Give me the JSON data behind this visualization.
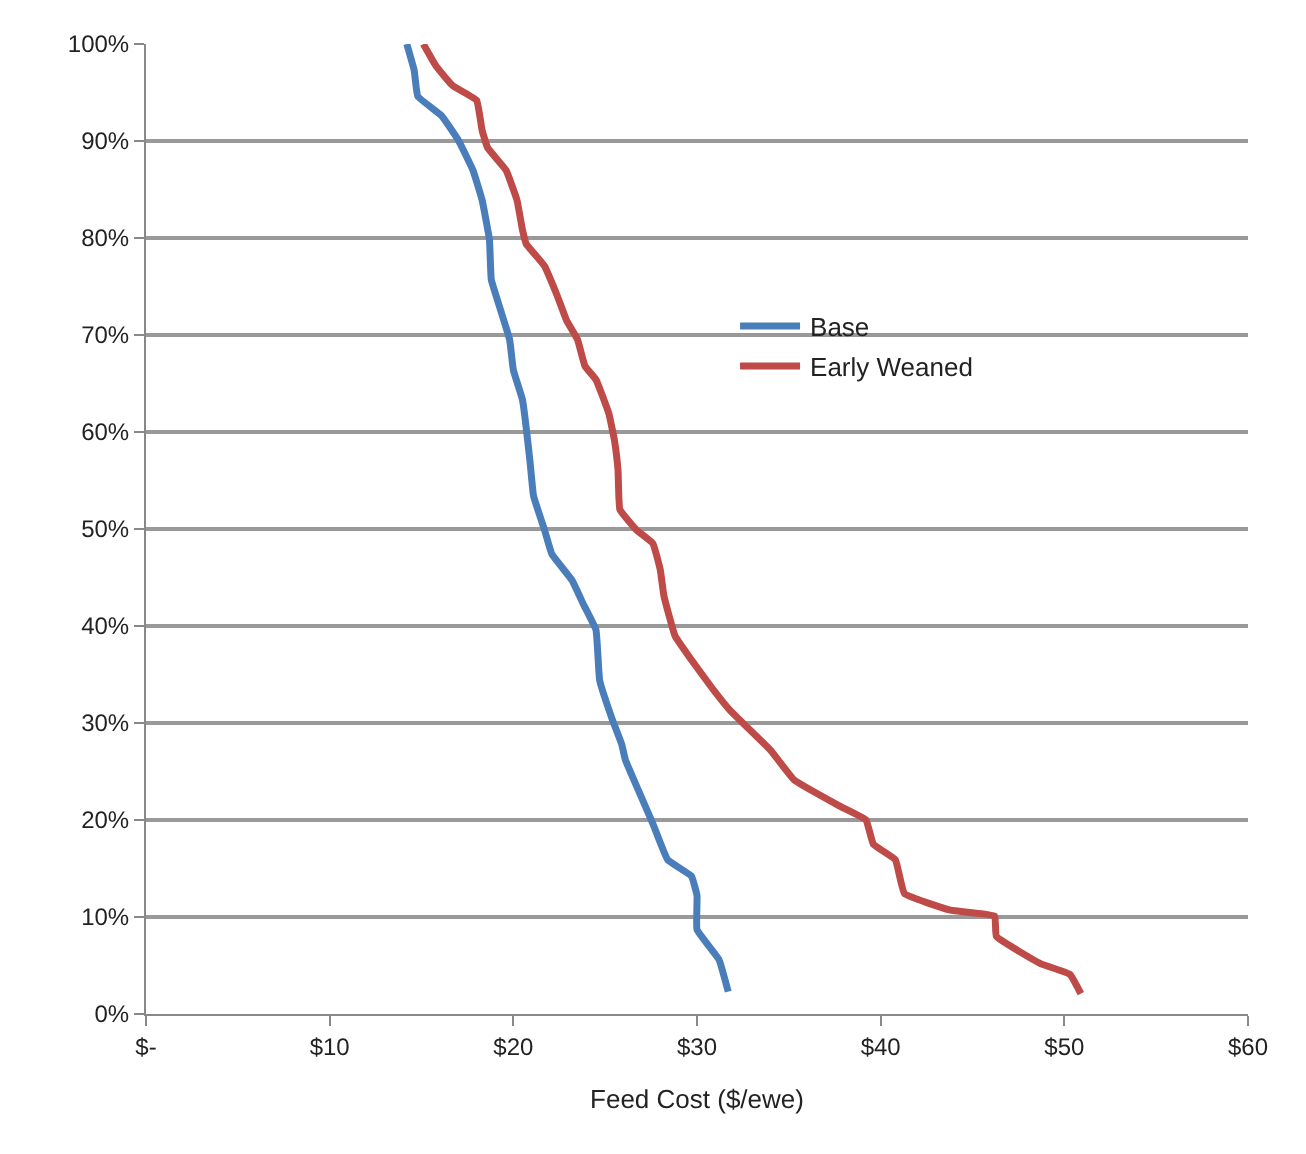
{
  "chart_data": {
    "type": "line",
    "xlabel": "Feed Cost ($/ewe)",
    "xlim": [
      0,
      60
    ],
    "ylim": [
      0,
      100
    ],
    "xticks": [
      {
        "value": 0,
        "label": "$-"
      },
      {
        "value": 10,
        "label": "$10"
      },
      {
        "value": 20,
        "label": "$20"
      },
      {
        "value": 30,
        "label": "$30"
      },
      {
        "value": 40,
        "label": "$40"
      },
      {
        "value": 50,
        "label": "$50"
      },
      {
        "value": 60,
        "label": "$60"
      }
    ],
    "yticks": [
      {
        "value": 0,
        "label": "0%"
      },
      {
        "value": 10,
        "label": "10%"
      },
      {
        "value": 20,
        "label": "20%"
      },
      {
        "value": 30,
        "label": "30%"
      },
      {
        "value": 40,
        "label": "40%"
      },
      {
        "value": 50,
        "label": "50%"
      },
      {
        "value": 60,
        "label": "60%"
      },
      {
        "value": 70,
        "label": "70%"
      },
      {
        "value": 80,
        "label": "80%"
      },
      {
        "value": 90,
        "label": "90%"
      },
      {
        "value": 100,
        "label": "100%"
      }
    ],
    "grid": "y",
    "legend": "right",
    "marker": "none",
    "line_style": "solid",
    "series": [
      {
        "name": "Base",
        "color": "#4a7ebb",
        "x": [
          14.2,
          14.6,
          14.8,
          16.1,
          17.0,
          17.8,
          18.3,
          18.7,
          18.8,
          19.3,
          19.8,
          20.0,
          20.5,
          20.9,
          21.1,
          21.7,
          22.1,
          23.2,
          23.8,
          24.5,
          24.7,
          25.4,
          25.9,
          26.1,
          26.8,
          27.6,
          28.4,
          29.7,
          30.0,
          30.0,
          31.2,
          31.7
        ],
        "values": [
          100,
          97.3,
          94.6,
          92.6,
          90.1,
          87,
          83.9,
          79.8,
          75.7,
          72.6,
          69.5,
          66.4,
          63.3,
          57.1,
          53.4,
          49.9,
          47.4,
          44.7,
          42.3,
          39.6,
          34.4,
          30.3,
          27.8,
          26.2,
          23.1,
          19.6,
          15.9,
          14.2,
          12.2,
          8.7,
          5.6,
          2.3
        ]
      },
      {
        "name": "Early Weaned",
        "color": "#be4b48",
        "x": [
          15.1,
          15.8,
          16.7,
          18.0,
          18.3,
          18.6,
          19.6,
          20.2,
          20.5,
          20.7,
          21.7,
          22.4,
          22.9,
          23.5,
          23.9,
          24.5,
          25.2,
          25.5,
          25.7,
          25.8,
          26.7,
          27.6,
          28.0,
          28.2,
          28.8,
          29.7,
          30.9,
          31.8,
          34.0,
          35.3,
          37.8,
          39.2,
          39.6,
          40.8,
          41.3,
          43.8,
          46.2,
          46.3,
          48.7,
          50.3,
          50.9
        ],
        "values": [
          100,
          97.7,
          95.7,
          94.2,
          91.1,
          89.3,
          87,
          83.9,
          80.8,
          79.4,
          77.1,
          74,
          71.5,
          69.5,
          66.8,
          65.4,
          61.9,
          59.2,
          56.1,
          52,
          49.9,
          48.5,
          45.8,
          43.1,
          39,
          36.5,
          33.4,
          31.3,
          27.2,
          24.1,
          21.4,
          20,
          17.5,
          15.9,
          12.4,
          10.7,
          10.1,
          8,
          5.2,
          4.1,
          2.1
        ]
      }
    ]
  }
}
